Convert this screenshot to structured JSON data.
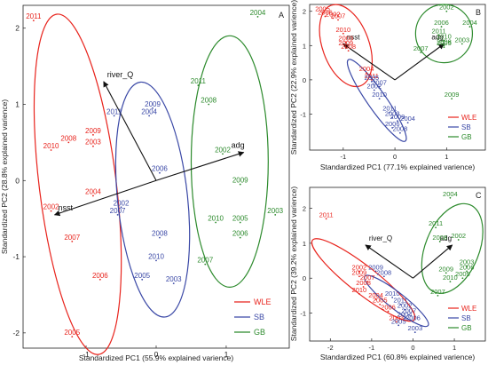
{
  "panels": [
    {
      "id": "A",
      "type": "scatter",
      "xlabel": "Standardized PC1 (55.9% explained varience)",
      "ylabel": "Standardized PC2 (28.8% explained varience)",
      "xlim": [
        -1.9,
        1.9
      ],
      "ylim": [
        -2.2,
        2.3
      ],
      "xticks": [
        -1,
        0,
        1
      ],
      "yticks": [
        -2,
        -1,
        0,
        1,
        2
      ],
      "legend_pos": "bottom-right",
      "series": [
        {
          "name": "WLE",
          "color": "#e8231c",
          "points": [
            {
              "label": "2011",
              "x": -1.75,
              "y": 2.1
            },
            {
              "label": "2009",
              "x": -0.9,
              "y": 0.6
            },
            {
              "label": "2008",
              "x": -1.25,
              "y": 0.5
            },
            {
              "label": "2003",
              "x": -0.9,
              "y": 0.45
            },
            {
              "label": "2010",
              "x": -1.5,
              "y": 0.4
            },
            {
              "label": "2004",
              "x": -0.9,
              "y": -0.2
            },
            {
              "label": "2002",
              "x": -1.5,
              "y": -0.4
            },
            {
              "label": "2007",
              "x": -1.2,
              "y": -0.8
            },
            {
              "label": "2006",
              "x": -0.8,
              "y": -1.3
            },
            {
              "label": "2005",
              "x": -1.2,
              "y": -2.05
            }
          ]
        },
        {
          "name": "SB",
          "color": "#3a48a6",
          "points": [
            {
              "label": "2009",
              "x": -0.05,
              "y": 0.95
            },
            {
              "label": "2011",
              "x": -0.6,
              "y": 0.85
            },
            {
              "label": "2004",
              "x": -0.1,
              "y": 0.85
            },
            {
              "label": "2006",
              "x": 0.05,
              "y": 0.1
            },
            {
              "label": "2002",
              "x": -0.5,
              "y": -0.35
            },
            {
              "label": "2007",
              "x": -0.55,
              "y": -0.45
            },
            {
              "label": "2008",
              "x": 0.05,
              "y": -0.75
            },
            {
              "label": "2010",
              "x": 0.0,
              "y": -1.05
            },
            {
              "label": "2005",
              "x": -0.2,
              "y": -1.3
            },
            {
              "label": "2003",
              "x": 0.25,
              "y": -1.35
            }
          ]
        },
        {
          "name": "GB",
          "color": "#2c8a2c",
          "points": [
            {
              "label": "2004",
              "x": 1.45,
              "y": 2.15
            },
            {
              "label": "2011",
              "x": 0.6,
              "y": 1.25
            },
            {
              "label": "2008",
              "x": 0.75,
              "y": 1.0
            },
            {
              "label": "2002",
              "x": 0.95,
              "y": 0.35
            },
            {
              "label": "2009",
              "x": 1.2,
              "y": -0.05
            },
            {
              "label": "2003",
              "x": 1.7,
              "y": -0.45
            },
            {
              "label": "2010",
              "x": 0.85,
              "y": -0.55
            },
            {
              "label": "2005",
              "x": 1.2,
              "y": -0.55
            },
            {
              "label": "2006",
              "x": 1.2,
              "y": -0.75
            },
            {
              "label": "2007",
              "x": 0.7,
              "y": -1.1
            }
          ]
        }
      ],
      "ellipses": [
        {
          "series": "WLE",
          "cx": -1.12,
          "cy": -0.05,
          "rx": 0.55,
          "ry": 2.25,
          "angle": -7
        },
        {
          "series": "SB",
          "cx": -0.05,
          "cy": -0.25,
          "rx": 0.5,
          "ry": 1.55,
          "angle": -6
        },
        {
          "series": "GB",
          "cx": 1.05,
          "cy": 0.25,
          "rx": 0.55,
          "ry": 1.65,
          "angle": 0
        }
      ],
      "vectors": [
        {
          "label": "river_Q",
          "x": -0.75,
          "y": 1.3
        },
        {
          "label": "adg",
          "x": 1.25,
          "y": 0.37
        },
        {
          "label": "nsst",
          "x": -1.45,
          "y": -0.45
        }
      ]
    },
    {
      "id": "B",
      "type": "scatter",
      "xlabel": "Standardized PC1 (77.1% explained varience)",
      "ylabel": "Standardized PC2 (22.9% explained varience)",
      "xlim": [
        -1.65,
        1.75
      ],
      "ylim": [
        -2.05,
        2.2
      ],
      "xticks": [
        -1,
        0,
        1
      ],
      "yticks": [
        -1,
        0,
        1,
        2
      ],
      "legend_pos": "bottom-right",
      "series": [
        {
          "name": "WLE",
          "color": "#e8231c",
          "points": [
            {
              "label": "2005",
              "x": -1.4,
              "y": 1.95
            },
            {
              "label": "2006",
              "x": -1.35,
              "y": 1.85
            },
            {
              "label": "2002",
              "x": -1.2,
              "y": 1.8
            },
            {
              "label": "2007",
              "x": -1.1,
              "y": 1.75
            },
            {
              "label": "2010",
              "x": -1.0,
              "y": 1.35
            },
            {
              "label": "2003",
              "x": -0.95,
              "y": 1.1
            },
            {
              "label": "2009",
              "x": -0.95,
              "y": 0.95
            },
            {
              "label": "2008",
              "x": -0.9,
              "y": 0.85
            },
            {
              "label": "2004",
              "x": -0.55,
              "y": 0.2
            },
            {
              "label": "2011",
              "x": -0.45,
              "y": 0.0
            }
          ]
        },
        {
          "name": "SB",
          "color": "#3a48a6",
          "points": [
            {
              "label": "2005",
              "x": -0.45,
              "y": -0.05
            },
            {
              "label": "2007",
              "x": -0.3,
              "y": -0.2
            },
            {
              "label": "2002",
              "x": -0.4,
              "y": -0.3
            },
            {
              "label": "2010",
              "x": -0.3,
              "y": -0.55
            },
            {
              "label": "2011",
              "x": -0.1,
              "y": -0.95
            },
            {
              "label": "2003",
              "x": -0.05,
              "y": -1.1
            },
            {
              "label": "2009",
              "x": 0.05,
              "y": -1.2
            },
            {
              "label": "2004",
              "x": 0.25,
              "y": -1.25
            },
            {
              "label": "2006",
              "x": -0.05,
              "y": -1.4
            },
            {
              "label": "2008",
              "x": 0.1,
              "y": -1.55
            }
          ]
        },
        {
          "name": "GB",
          "color": "#2c8a2c",
          "points": [
            {
              "label": "2002",
              "x": 1.0,
              "y": 2.0
            },
            {
              "label": "2006",
              "x": 0.9,
              "y": 1.55
            },
            {
              "label": "2004",
              "x": 1.45,
              "y": 1.55
            },
            {
              "label": "2011",
              "x": 0.85,
              "y": 1.3
            },
            {
              "label": "2010",
              "x": 0.95,
              "y": 1.15
            },
            {
              "label": "2008",
              "x": 0.95,
              "y": 1.0
            },
            {
              "label": "2003",
              "x": 1.3,
              "y": 1.05
            },
            {
              "label": "2005",
              "x": 0.95,
              "y": 0.95
            },
            {
              "label": "2007",
              "x": 0.5,
              "y": 0.8
            },
            {
              "label": "2009",
              "x": 1.1,
              "y": -0.55
            }
          ]
        }
      ],
      "ellipses": [
        {
          "series": "WLE",
          "cx": -0.95,
          "cy": 1.0,
          "rx": 0.45,
          "ry": 1.25,
          "angle": -20
        },
        {
          "series": "SB",
          "cx": -0.35,
          "cy": -0.6,
          "rx": 0.18,
          "ry": 1.45,
          "angle": -35
        },
        {
          "series": "GB",
          "cx": 0.95,
          "cy": 1.35,
          "rx": 0.55,
          "ry": 0.85,
          "angle": 0
        }
      ],
      "vectors": [
        {
          "label": "adg",
          "x": 0.95,
          "y": 1.05
        },
        {
          "label": "nsst",
          "x": -1.0,
          "y": 1.05
        }
      ]
    },
    {
      "id": "C",
      "type": "scatter",
      "xlabel": "Standardized PC1 (60.8% explained varience)",
      "ylabel": "Standardized PC2 (39.2% explained varience)",
      "xlim": [
        -2.5,
        1.75
      ],
      "ylim": [
        -1.8,
        2.6
      ],
      "xticks": [
        -2,
        -1,
        0,
        1
      ],
      "yticks": [
        -1,
        0,
        1,
        2
      ],
      "legend_pos": "bottom-right",
      "series": [
        {
          "name": "WLE",
          "color": "#e8231c",
          "points": [
            {
              "label": "2011",
              "x": -2.1,
              "y": 1.7
            },
            {
              "label": "2002",
              "x": -1.3,
              "y": 0.2
            },
            {
              "label": "2009",
              "x": -1.3,
              "y": 0.05
            },
            {
              "label": "2007",
              "x": -1.1,
              "y": -0.1
            },
            {
              "label": "2008",
              "x": -1.2,
              "y": -0.25
            },
            {
              "label": "2010",
              "x": -1.3,
              "y": -0.45
            },
            {
              "label": "2004",
              "x": -0.9,
              "y": -0.6
            },
            {
              "label": "2005",
              "x": -0.8,
              "y": -0.75
            },
            {
              "label": "2006",
              "x": -0.6,
              "y": -0.95
            },
            {
              "label": "2003",
              "x": -0.4,
              "y": -1.25
            }
          ]
        },
        {
          "name": "SB",
          "color": "#3a48a6",
          "points": [
            {
              "label": "2009",
              "x": -0.9,
              "y": 0.2
            },
            {
              "label": "2008",
              "x": -0.7,
              "y": 0.05
            },
            {
              "label": "2010",
              "x": -0.5,
              "y": -0.55
            },
            {
              "label": "2011",
              "x": -0.3,
              "y": -0.75
            },
            {
              "label": "2002",
              "x": -0.2,
              "y": -0.9
            },
            {
              "label": "2007",
              "x": -0.1,
              "y": -1.05
            },
            {
              "label": "2004",
              "x": -0.2,
              "y": -1.15
            },
            {
              "label": "2006",
              "x": 0.0,
              "y": -1.25
            },
            {
              "label": "2005",
              "x": -0.35,
              "y": -1.35
            },
            {
              "label": "2003",
              "x": 0.05,
              "y": -1.55
            }
          ]
        },
        {
          "name": "GB",
          "color": "#2c8a2c",
          "points": [
            {
              "label": "2004",
              "x": 0.9,
              "y": 2.3
            },
            {
              "label": "2011",
              "x": 0.55,
              "y": 1.45
            },
            {
              "label": "2008",
              "x": 0.65,
              "y": 1.05
            },
            {
              "label": "2002",
              "x": 1.1,
              "y": 1.1
            },
            {
              "label": "2003",
              "x": 1.3,
              "y": 0.35
            },
            {
              "label": "2009",
              "x": 0.8,
              "y": 0.15
            },
            {
              "label": "2005",
              "x": 1.2,
              "y": 0.0
            },
            {
              "label": "2006",
              "x": 1.3,
              "y": 0.2
            },
            {
              "label": "2010",
              "x": 0.9,
              "y": -0.1
            },
            {
              "label": "2007",
              "x": 0.6,
              "y": -0.5
            }
          ]
        }
      ],
      "ellipses": [
        {
          "series": "WLE",
          "cx": -1.2,
          "cy": -0.05,
          "rx": 0.33,
          "ry": 1.85,
          "angle": -52
        },
        {
          "series": "SB",
          "cx": -0.4,
          "cy": -0.65,
          "rx": 0.2,
          "ry": 1.15,
          "angle": -52
        },
        {
          "series": "GB",
          "cx": 0.95,
          "cy": 0.85,
          "rx": 0.65,
          "ry": 1.35,
          "angle": 22
        }
      ],
      "vectors": [
        {
          "label": "river_Q",
          "x": -1.15,
          "y": 0.95
        },
        {
          "label": "adg",
          "x": 0.95,
          "y": 0.95
        }
      ]
    }
  ],
  "legend_series": [
    "WLE",
    "SB",
    "GB"
  ]
}
